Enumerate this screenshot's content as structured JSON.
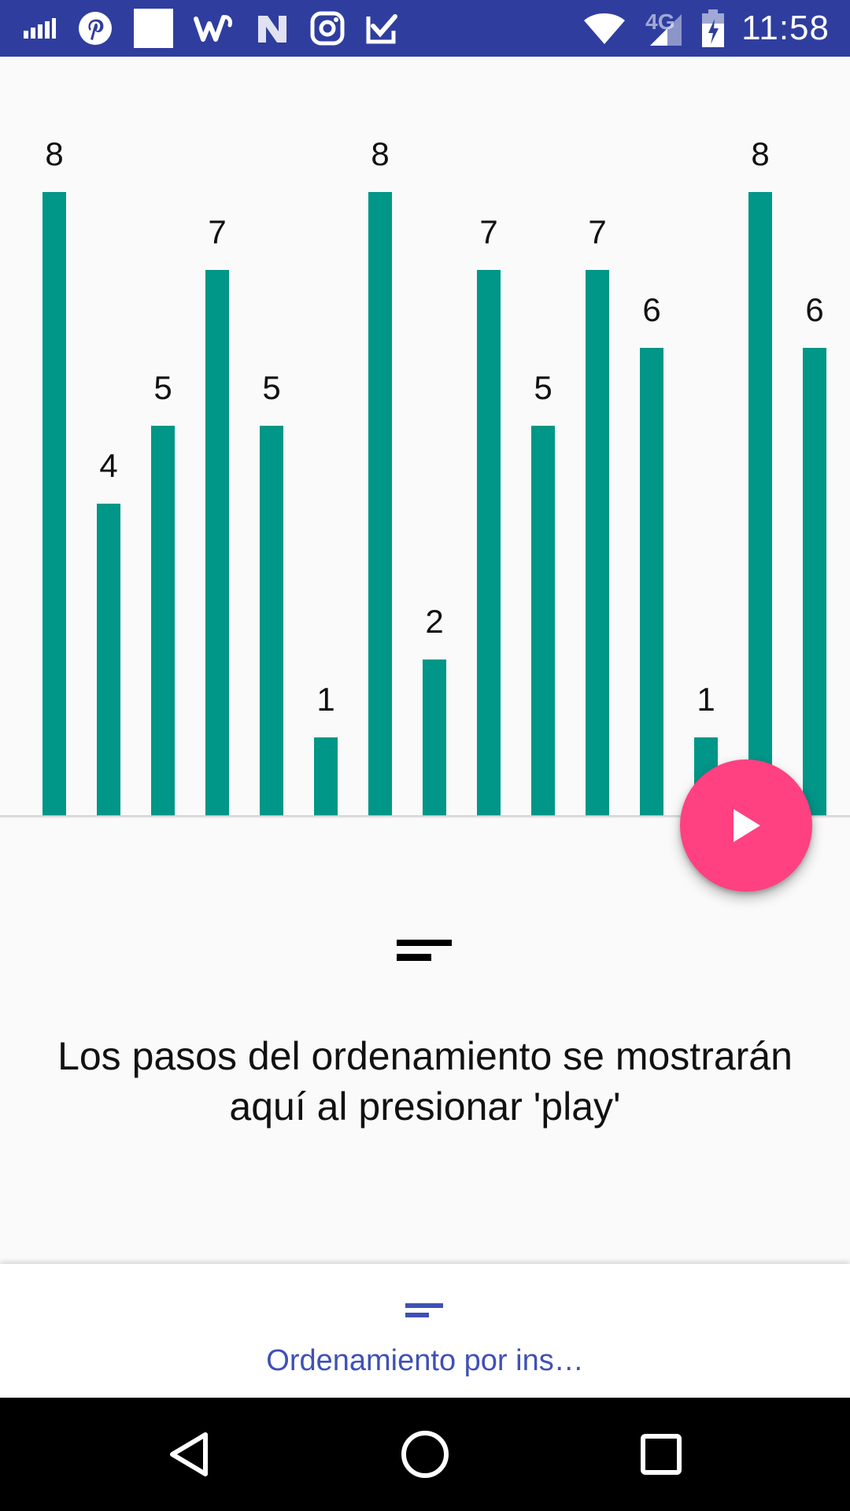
{
  "status_bar": {
    "time": "11:58",
    "network_label": "4G",
    "left_icons": [
      "signal-bars-icon",
      "pinterest-icon",
      "white-square-icon",
      "wish-icon",
      "n-app-icon",
      "instagram-icon",
      "checkbox-app-icon"
    ],
    "right_icons": [
      "wifi-icon",
      "cell-signal-icon",
      "battery-charging-icon"
    ]
  },
  "chart_data": {
    "type": "bar",
    "values": [
      8,
      4,
      5,
      7,
      5,
      1,
      8,
      2,
      7,
      5,
      7,
      6,
      1,
      8,
      6
    ],
    "ylim": [
      0,
      8
    ],
    "bar_color": "#009688",
    "label_color": "#111111"
  },
  "fab": {
    "icon": "play-icon",
    "color": "#ff4081"
  },
  "steps": {
    "icon": "sort-lines-icon",
    "message": "Los pasos del ordenamiento se mostrarán aquí al presionar 'play'"
  },
  "bottom_nav": {
    "items": [
      {
        "label": "Ordenamiento por ins…",
        "icon": "sort-lines-icon"
      }
    ],
    "accent": "#3f51b5"
  },
  "colors": {
    "status_bar": "#2f3e9e",
    "background": "#fafafa"
  },
  "system_nav": {
    "buttons": [
      "back-triangle-icon",
      "home-circle-icon",
      "recents-square-icon"
    ]
  }
}
